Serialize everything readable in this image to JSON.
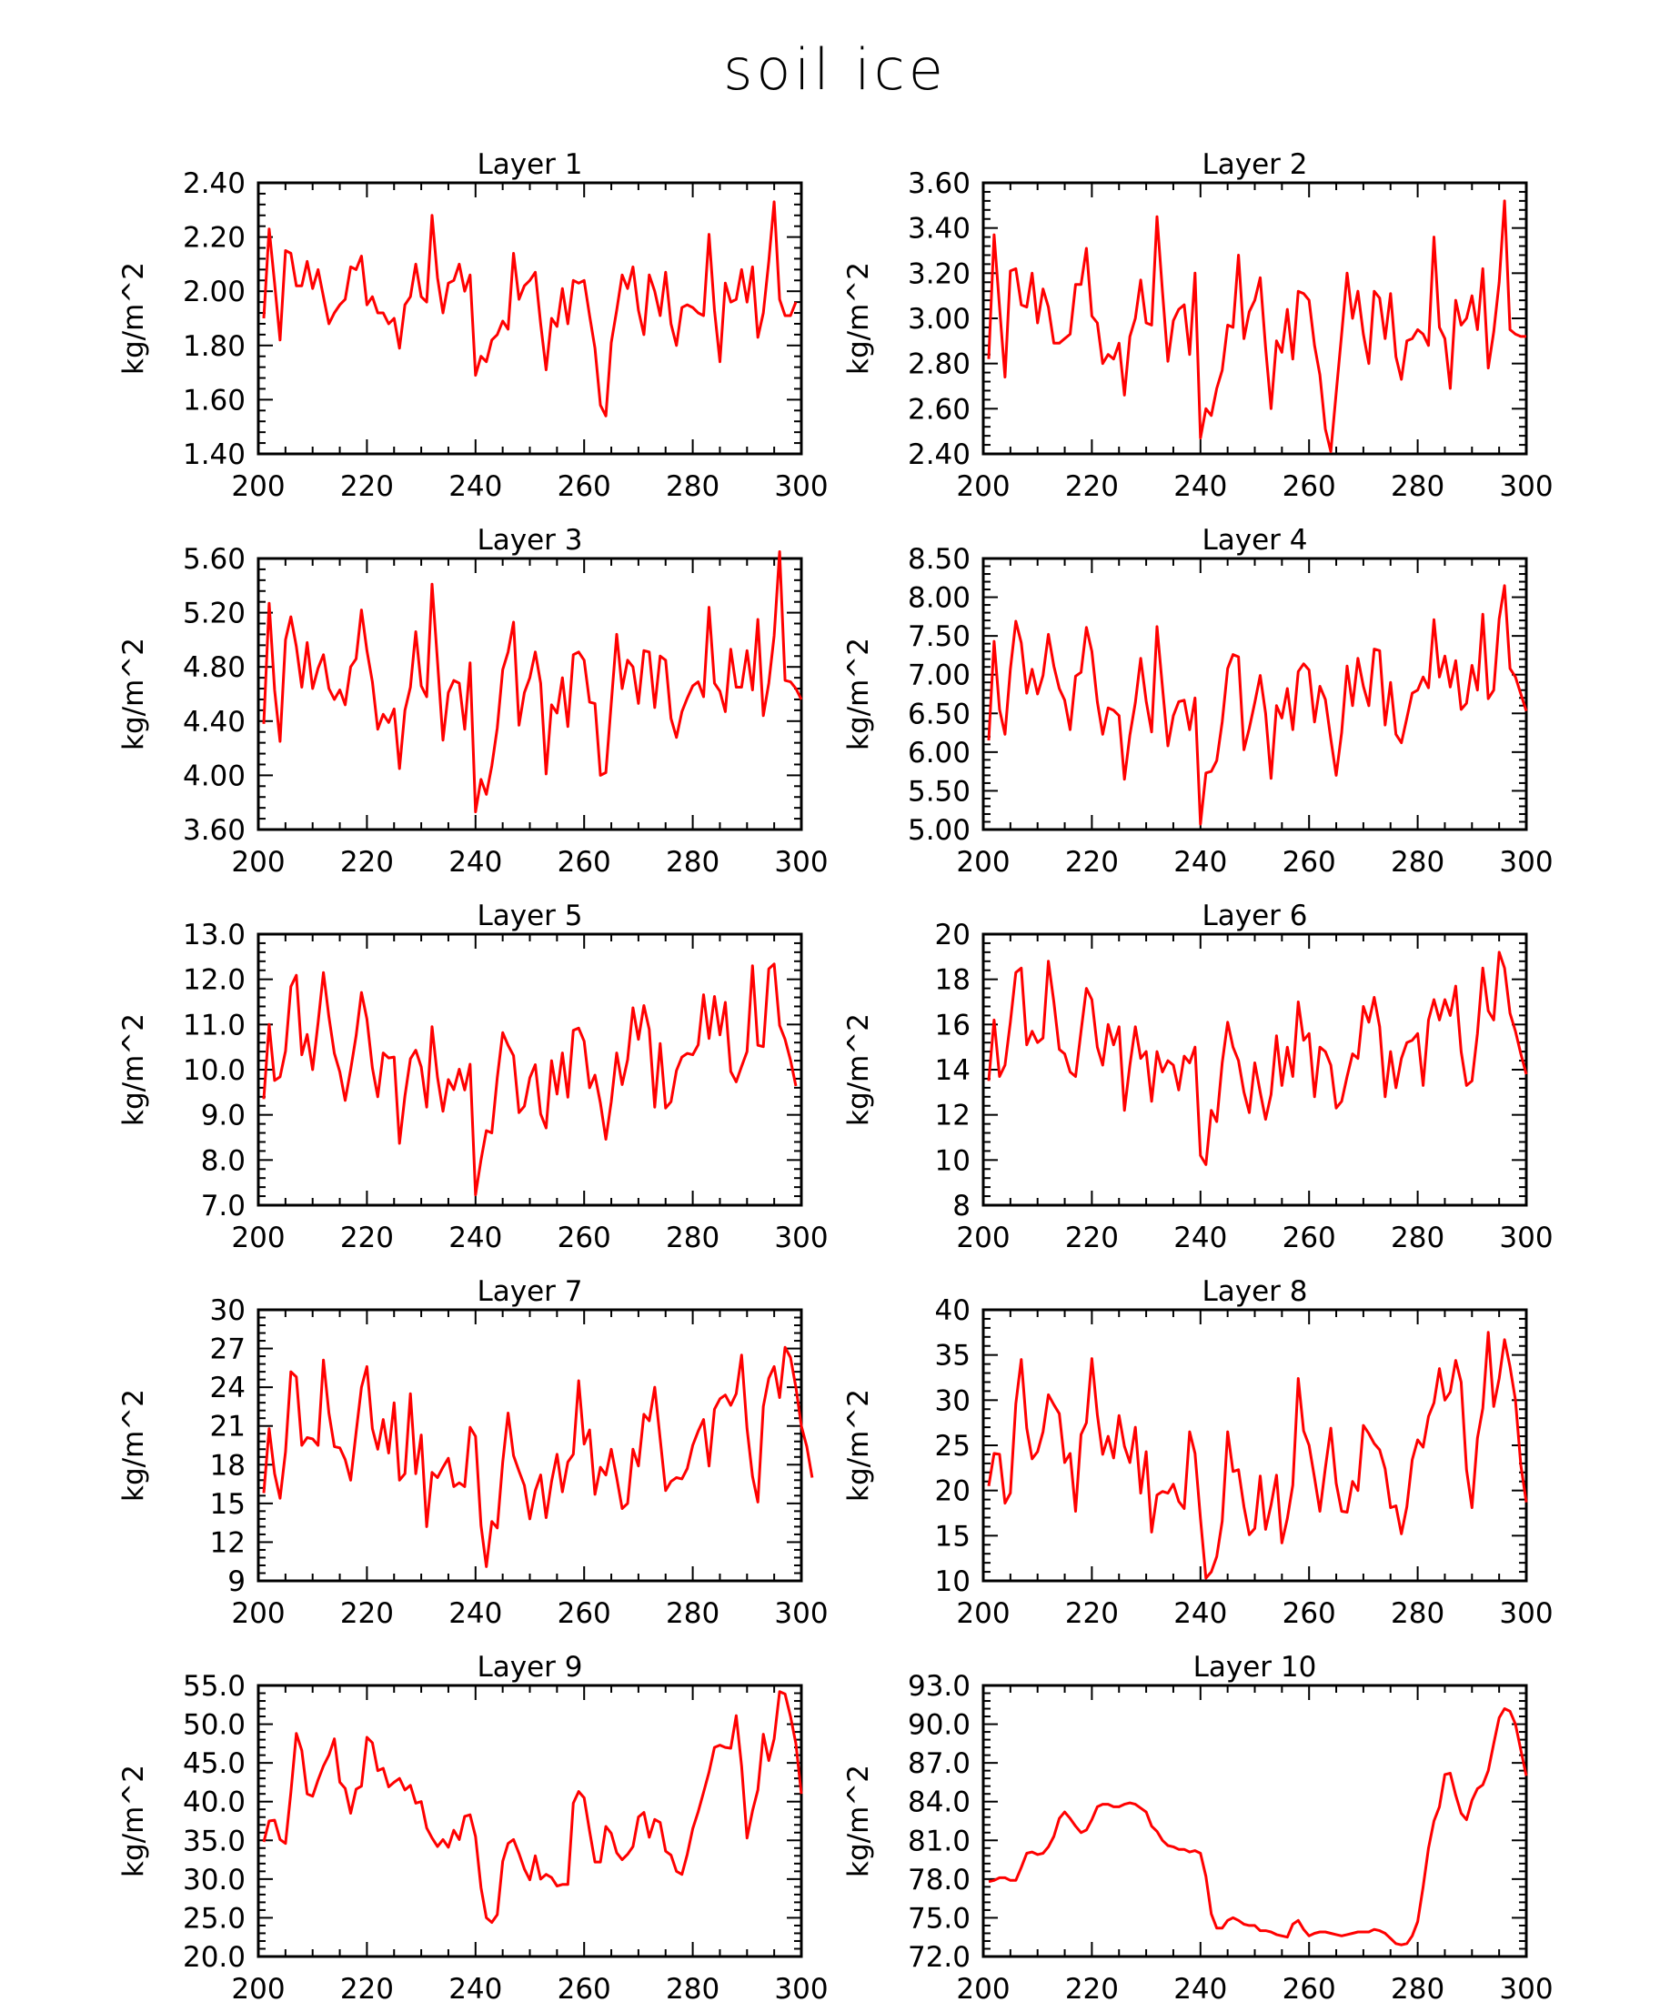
{
  "title": "soil ice",
  "chart_data": [
    {
      "type": "line",
      "title": "Layer 1",
      "ylabel": "kg/m^2",
      "xlim": [
        200,
        300
      ],
      "ylim": [
        1.4,
        2.4
      ],
      "xticks": [
        "200",
        "220",
        "240",
        "260",
        "280",
        "300"
      ],
      "yticks": [
        "1.40",
        "1.60",
        "1.80",
        "2.00",
        "2.20",
        "2.40"
      ],
      "color": "#ff0000",
      "x_start": 201,
      "x_step": 1,
      "values": [
        1.9,
        2.23,
        2.03,
        1.82,
        2.15,
        2.14,
        2.02,
        2.02,
        2.11,
        2.01,
        2.08,
        1.98,
        1.88,
        1.92,
        1.95,
        1.97,
        2.09,
        2.08,
        2.13,
        1.95,
        1.98,
        1.92,
        1.92,
        1.88,
        1.9,
        1.79,
        1.95,
        1.98,
        2.1,
        1.98,
        1.96,
        2.28,
        2.05,
        1.92,
        2.03,
        2.04,
        2.1,
        2.0,
        2.06,
        1.69,
        1.76,
        1.74,
        1.82,
        1.84,
        1.89,
        1.86,
        2.14,
        1.97,
        2.02,
        2.04,
        2.07,
        1.88,
        1.71,
        1.9,
        1.87,
        2.01,
        1.88,
        2.04,
        2.03,
        2.04,
        1.91,
        1.79,
        1.58,
        1.54,
        1.81,
        1.93,
        2.06,
        2.01,
        2.09,
        1.93,
        1.84,
        2.06,
        2.0,
        1.91,
        2.07,
        1.88,
        1.8,
        1.94,
        1.95,
        1.94,
        1.92,
        1.91,
        2.21,
        1.93,
        1.74,
        2.03,
        1.96,
        1.97,
        2.08,
        1.96,
        2.09,
        1.83,
        1.92,
        2.11,
        2.33,
        1.97,
        1.91,
        1.91,
        1.96
      ]
    },
    {
      "type": "line",
      "title": "Layer 2",
      "ylabel": "kg/m^2",
      "xlim": [
        200,
        300
      ],
      "ylim": [
        2.4,
        3.6
      ],
      "xticks": [
        "200",
        "220",
        "240",
        "260",
        "280",
        "300"
      ],
      "yticks": [
        "2.40",
        "2.60",
        "2.80",
        "3.00",
        "3.20",
        "3.40",
        "3.60"
      ],
      "color": "#ff0000",
      "x_start": 201,
      "x_step": 1,
      "values": [
        2.82,
        3.37,
        3.05,
        2.74,
        3.21,
        3.22,
        3.06,
        3.05,
        3.2,
        2.98,
        3.13,
        3.05,
        2.89,
        2.89,
        2.91,
        2.93,
        3.15,
        3.15,
        3.31,
        3.01,
        2.98,
        2.8,
        2.84,
        2.82,
        2.89,
        2.66,
        2.92,
        3.0,
        3.17,
        2.98,
        2.97,
        3.45,
        3.12,
        2.81,
        2.99,
        3.04,
        3.06,
        2.84,
        3.2,
        2.47,
        2.6,
        2.57,
        2.69,
        2.77,
        2.97,
        2.96,
        3.28,
        2.91,
        3.03,
        3.08,
        3.18,
        2.87,
        2.6,
        2.9,
        2.85,
        3.04,
        2.82,
        3.12,
        3.11,
        3.08,
        2.88,
        2.75,
        2.51,
        2.41,
        2.67,
        2.93,
        3.2,
        3.0,
        3.12,
        2.93,
        2.8,
        3.12,
        3.09,
        2.91,
        3.11,
        2.83,
        2.73,
        2.9,
        2.91,
        2.95,
        2.93,
        2.88,
        3.36,
        2.96,
        2.91,
        2.69,
        3.08,
        2.97,
        3.0,
        3.1,
        2.95,
        3.22,
        2.78,
        2.94,
        3.16,
        3.52,
        2.95,
        2.93,
        2.92,
        2.92
      ]
    },
    {
      "type": "line",
      "title": "Layer 3",
      "ylabel": "kg/m^2",
      "xlim": [
        200,
        300
      ],
      "ylim": [
        3.6,
        5.6
      ],
      "xticks": [
        "200",
        "220",
        "240",
        "260",
        "280",
        "300"
      ],
      "yticks": [
        "3.60",
        "4.00",
        "4.40",
        "4.80",
        "5.20",
        "5.60"
      ],
      "color": "#ff0000",
      "x_start": 201,
      "x_step": 1,
      "values": [
        4.38,
        5.27,
        4.63,
        4.25,
        5.0,
        5.17,
        4.95,
        4.65,
        4.98,
        4.64,
        4.79,
        4.89,
        4.64,
        4.56,
        4.63,
        4.52,
        4.8,
        4.86,
        5.22,
        4.92,
        4.69,
        4.34,
        4.45,
        4.39,
        4.49,
        4.05,
        4.48,
        4.65,
        5.06,
        4.66,
        4.58,
        5.41,
        4.84,
        4.26,
        4.61,
        4.7,
        4.68,
        4.34,
        4.83,
        3.73,
        3.97,
        3.86,
        4.07,
        4.35,
        4.78,
        4.91,
        5.13,
        4.37,
        4.61,
        4.72,
        4.91,
        4.68,
        4.01,
        4.52,
        4.46,
        4.72,
        4.36,
        4.89,
        4.91,
        4.85,
        4.54,
        4.53,
        4.0,
        4.02,
        4.53,
        5.04,
        4.64,
        4.85,
        4.8,
        4.53,
        4.92,
        4.91,
        4.5,
        4.88,
        4.85,
        4.42,
        4.28,
        4.47,
        4.57,
        4.66,
        4.69,
        4.58,
        5.24,
        4.68,
        4.62,
        4.47,
        4.93,
        4.65,
        4.65,
        4.92,
        4.63,
        5.15,
        4.44,
        4.68,
        5.03,
        5.65,
        4.7,
        4.69,
        4.64,
        4.56
      ]
    },
    {
      "type": "line",
      "title": "Layer 4",
      "ylabel": "kg/m^2",
      "xlim": [
        200,
        300
      ],
      "ylim": [
        5.0,
        8.5
      ],
      "xticks": [
        "200",
        "220",
        "240",
        "260",
        "280",
        "300"
      ],
      "yticks": [
        "5.00",
        "5.50",
        "6.00",
        "6.50",
        "7.00",
        "7.50",
        "8.00",
        "8.50"
      ],
      "color": "#ff0000",
      "x_start": 201,
      "x_step": 1,
      "values": [
        6.15,
        7.43,
        6.55,
        6.23,
        7.07,
        7.69,
        7.41,
        6.76,
        7.07,
        6.75,
        6.99,
        7.52,
        7.11,
        6.82,
        6.67,
        6.29,
        6.98,
        7.03,
        7.61,
        7.3,
        6.65,
        6.23,
        6.57,
        6.54,
        6.47,
        5.65,
        6.22,
        6.64,
        7.21,
        6.66,
        6.26,
        7.62,
        6.84,
        6.08,
        6.47,
        6.65,
        6.67,
        6.29,
        6.7,
        5.07,
        5.73,
        5.75,
        5.89,
        6.39,
        7.08,
        7.26,
        7.23,
        6.03,
        6.31,
        6.64,
        6.99,
        6.5,
        5.66,
        6.6,
        6.44,
        6.82,
        6.29,
        7.04,
        7.14,
        7.06,
        6.39,
        6.85,
        6.68,
        6.17,
        5.7,
        6.25,
        7.11,
        6.6,
        7.21,
        6.85,
        6.6,
        7.33,
        7.31,
        6.35,
        6.9,
        6.23,
        6.12,
        6.44,
        6.76,
        6.8,
        6.97,
        6.83,
        7.71,
        6.97,
        7.24,
        6.84,
        7.18,
        6.55,
        6.63,
        7.12,
        6.8,
        7.78,
        6.69,
        6.8,
        7.72,
        8.15,
        7.08,
        6.97,
        6.75,
        6.53
      ]
    },
    {
      "type": "line",
      "title": "Layer 5",
      "ylabel": "kg/m^2",
      "xlim": [
        200,
        300
      ],
      "ylim": [
        7.0,
        13.0
      ],
      "xticks": [
        "200",
        "220",
        "240",
        "260",
        "280",
        "300"
      ],
      "yticks": [
        "7.0",
        "8.0",
        "9.0",
        "10.0",
        "11.0",
        "12.0",
        "13.0"
      ],
      "color": "#ff0000",
      "x_start": 201,
      "x_step": 1,
      "values": [
        9.35,
        11.0,
        9.76,
        9.84,
        10.41,
        11.84,
        12.09,
        10.33,
        10.78,
        10.0,
        11.04,
        12.15,
        11.17,
        10.36,
        9.95,
        9.32,
        10.0,
        10.75,
        11.71,
        11.12,
        10.04,
        9.4,
        10.37,
        10.26,
        10.28,
        8.37,
        9.42,
        10.24,
        10.43,
        10.06,
        9.17,
        10.95,
        9.83,
        9.08,
        9.78,
        9.56,
        10.01,
        9.55,
        10.12,
        7.23,
        8.0,
        8.65,
        8.6,
        9.82,
        10.82,
        10.54,
        10.31,
        9.05,
        9.19,
        9.82,
        10.11,
        9.02,
        8.71,
        10.2,
        9.46,
        10.37,
        9.39,
        10.87,
        10.92,
        10.63,
        9.6,
        9.88,
        9.26,
        8.46,
        9.29,
        10.37,
        9.67,
        10.22,
        11.37,
        10.67,
        11.42,
        10.89,
        9.17,
        10.58,
        9.15,
        9.29,
        9.98,
        10.28,
        10.36,
        10.33,
        10.55,
        11.66,
        10.69,
        11.62,
        10.77,
        11.49,
        9.96,
        9.73,
        10.07,
        10.4,
        12.3,
        10.54,
        10.51,
        12.23,
        12.34,
        10.98,
        10.67,
        10.21,
        9.64
      ]
    },
    {
      "type": "line",
      "title": "Layer 6",
      "ylabel": "kg/m^2",
      "xlim": [
        200,
        300
      ],
      "ylim": [
        8,
        20
      ],
      "xticks": [
        "200",
        "220",
        "240",
        "260",
        "280",
        "300"
      ],
      "yticks": [
        "8",
        "10",
        "12",
        "14",
        "16",
        "18",
        "20"
      ],
      "color": "#ff0000",
      "x_start": 201,
      "x_step": 1,
      "values": [
        13.5,
        16.2,
        13.7,
        14.2,
        16.1,
        18.3,
        18.5,
        15.1,
        15.7,
        15.2,
        15.4,
        18.8,
        17.0,
        14.9,
        14.7,
        13.9,
        13.7,
        15.7,
        17.6,
        17.1,
        15.0,
        14.2,
        16.0,
        15.1,
        15.9,
        12.2,
        14.2,
        15.9,
        14.5,
        14.8,
        12.6,
        14.8,
        13.9,
        14.4,
        14.2,
        13.1,
        14.6,
        14.3,
        15.0,
        10.2,
        9.8,
        12.2,
        11.7,
        14.3,
        16.1,
        15.0,
        14.4,
        13.0,
        12.1,
        14.3,
        13.0,
        11.8,
        12.9,
        15.5,
        13.3,
        15.0,
        13.7,
        17.0,
        15.3,
        15.6,
        12.8,
        15.0,
        14.8,
        14.2,
        12.3,
        12.6,
        13.7,
        14.7,
        14.5,
        16.8,
        16.1,
        17.2,
        15.9,
        12.8,
        14.8,
        13.2,
        14.5,
        15.2,
        15.3,
        15.6,
        13.3,
        16.2,
        17.1,
        16.2,
        17.1,
        16.4,
        17.7,
        14.8,
        13.3,
        13.5,
        15.6,
        18.5,
        16.6,
        16.2,
        19.2,
        18.5,
        16.5,
        15.7,
        14.7,
        13.8
      ]
    },
    {
      "type": "line",
      "title": "Layer 7",
      "ylabel": "kg/m^2",
      "xlim": [
        200,
        300
      ],
      "ylim": [
        9,
        30
      ],
      "xticks": [
        "200",
        "220",
        "240",
        "260",
        "280",
        "300"
      ],
      "yticks": [
        "9",
        "12",
        "15",
        "18",
        "21",
        "24",
        "27",
        "30"
      ],
      "color": "#ff0000",
      "x_start": 201,
      "x_step": 1,
      "values": [
        15.8,
        20.8,
        17.3,
        15.4,
        19.0,
        25.2,
        24.8,
        19.5,
        20.1,
        20.0,
        19.5,
        26.1,
        22.0,
        19.4,
        19.3,
        18.4,
        16.8,
        20.5,
        24.0,
        25.6,
        20.8,
        19.2,
        21.5,
        18.9,
        22.8,
        16.8,
        17.3,
        23.5,
        17.3,
        20.3,
        13.2,
        17.4,
        17.0,
        17.8,
        18.5,
        16.3,
        16.6,
        16.3,
        20.9,
        20.2,
        13.3,
        10.1,
        13.6,
        13.1,
        18.2,
        22.0,
        18.7,
        17.5,
        16.4,
        13.8,
        16.0,
        17.2,
        13.9,
        16.7,
        18.8,
        15.9,
        18.2,
        18.8,
        24.5,
        19.6,
        20.7,
        15.7,
        17.8,
        17.2,
        19.2,
        17.0,
        14.6,
        15.0,
        19.2,
        17.9,
        21.9,
        21.4,
        24.0,
        20.0,
        16.0,
        16.7,
        17.0,
        16.9,
        17.7,
        19.5,
        20.6,
        21.5,
        17.9,
        22.3,
        23.1,
        23.4,
        22.6,
        23.5,
        26.5,
        20.8,
        17.1,
        15.1,
        22.5,
        24.7,
        25.6,
        23.2,
        27.1,
        26.3,
        24.0,
        21.0,
        19.4,
        17.0
      ]
    },
    {
      "type": "line",
      "title": "Layer 8",
      "ylabel": "kg/m^2",
      "xlim": [
        200,
        300
      ],
      "ylim": [
        10,
        40
      ],
      "xticks": [
        "200",
        "220",
        "240",
        "260",
        "280",
        "300"
      ],
      "yticks": [
        "10",
        "15",
        "20",
        "25",
        "30",
        "35",
        "40"
      ],
      "color": "#ff0000",
      "x_start": 201,
      "x_step": 1,
      "values": [
        20.5,
        24.1,
        24.0,
        18.6,
        19.7,
        29.6,
        34.5,
        26.9,
        23.5,
        24.3,
        26.5,
        30.6,
        29.5,
        28.5,
        23.1,
        24.1,
        17.7,
        26.2,
        27.5,
        34.6,
        28.4,
        24.0,
        26.0,
        23.6,
        28.3,
        24.9,
        23.1,
        27.0,
        19.7,
        24.3,
        15.4,
        19.5,
        19.9,
        19.7,
        20.7,
        18.8,
        18.0,
        26.5,
        24.1,
        16.9,
        10.3,
        11.0,
        12.7,
        16.6,
        26.5,
        22.1,
        22.3,
        18.2,
        15.1,
        15.8,
        21.6,
        15.7,
        18.4,
        21.7,
        14.2,
        16.9,
        20.6,
        32.4,
        26.6,
        25.0,
        21.4,
        17.7,
        22.5,
        26.9,
        20.8,
        17.7,
        17.6,
        21.0,
        20.0,
        27.2,
        26.3,
        25.2,
        24.5,
        22.4,
        18.1,
        18.3,
        15.2,
        18.2,
        23.4,
        25.6,
        24.8,
        28.2,
        29.7,
        33.5,
        30.0,
        30.9,
        34.4,
        32.0,
        22.3,
        18.1,
        25.8,
        29.1,
        37.5,
        29.3,
        32.4,
        36.7,
        33.7,
        30.0,
        22.8,
        18.7
      ]
    },
    {
      "type": "line",
      "title": "Layer 9",
      "ylabel": "kg/m^2",
      "xlim": [
        200,
        300
      ],
      "ylim": [
        20,
        55
      ],
      "xticks": [
        "200",
        "220",
        "240",
        "260",
        "280",
        "300"
      ],
      "yticks": [
        "20.0",
        "25.0",
        "30.0",
        "35.0",
        "40.0",
        "45.0",
        "50.0",
        "55.0"
      ],
      "color": "#ff0000",
      "x_start": 201,
      "x_step": 1,
      "values": [
        34.8,
        37.5,
        37.6,
        35.1,
        34.6,
        41.2,
        48.8,
        46.6,
        41.0,
        40.7,
        42.8,
        44.6,
        46.0,
        48.1,
        42.5,
        41.7,
        38.5,
        41.6,
        42.0,
        48.3,
        47.6,
        44.0,
        44.3,
        41.9,
        42.5,
        43.0,
        41.5,
        42.1,
        39.8,
        40.0,
        36.6,
        35.3,
        34.2,
        35.1,
        34.1,
        36.3,
        35.1,
        38.1,
        38.3,
        35.5,
        28.9,
        25.0,
        24.4,
        25.4,
        32.3,
        34.6,
        35.1,
        33.3,
        31.3,
        29.9,
        33.0,
        30.0,
        30.6,
        30.2,
        29.1,
        29.3,
        29.3,
        39.8,
        41.3,
        40.5,
        36.2,
        32.2,
        32.2,
        36.8,
        35.9,
        33.4,
        32.5,
        33.2,
        34.2,
        38.0,
        38.6,
        35.4,
        37.7,
        37.3,
        33.6,
        33.1,
        31.0,
        30.6,
        33.2,
        36.5,
        38.7,
        41.2,
        43.8,
        47.0,
        47.3,
        47.0,
        46.9,
        51.1,
        44.6,
        35.3,
        38.8,
        41.5,
        48.7,
        45.3,
        48.1,
        54.2,
        53.9,
        51.0,
        47.5,
        41.0
      ]
    },
    {
      "type": "line",
      "title": "Layer 10",
      "ylabel": "kg/m^2",
      "xlim": [
        200,
        300
      ],
      "ylim": [
        72,
        93
      ],
      "xticks": [
        "200",
        "220",
        "240",
        "260",
        "280",
        "300"
      ],
      "yticks": [
        "72.0",
        "75.0",
        "78.0",
        "81.0",
        "84.0",
        "87.0",
        "90.0",
        "93.0"
      ],
      "color": "#ff0000",
      "x_start": 201,
      "x_step": 1,
      "values": [
        77.8,
        77.9,
        78.1,
        78.1,
        77.9,
        77.9,
        78.9,
        80.0,
        80.1,
        79.9,
        80.0,
        80.5,
        81.3,
        82.7,
        83.2,
        82.7,
        82.1,
        81.6,
        81.8,
        82.6,
        83.6,
        83.8,
        83.8,
        83.6,
        83.6,
        83.8,
        83.9,
        83.8,
        83.5,
        83.2,
        82.1,
        81.7,
        81.0,
        80.6,
        80.5,
        80.3,
        80.3,
        80.1,
        80.2,
        80.0,
        78.2,
        75.3,
        74.2,
        74.2,
        74.8,
        75.0,
        74.8,
        74.5,
        74.4,
        74.4,
        74.0,
        74.0,
        73.9,
        73.7,
        73.6,
        73.5,
        74.5,
        74.8,
        74.1,
        73.6,
        73.8,
        73.9,
        73.9,
        73.8,
        73.7,
        73.6,
        73.7,
        73.8,
        73.9,
        73.9,
        73.9,
        74.1,
        74.0,
        73.8,
        73.4,
        73.0,
        72.9,
        73.0,
        73.6,
        74.7,
        77.4,
        80.4,
        82.5,
        83.6,
        86.1,
        86.2,
        84.5,
        83.1,
        82.6,
        84.1,
        85.0,
        85.3,
        86.4,
        88.5,
        90.5,
        91.2,
        91.0,
        90.0,
        88.0,
        86.0
      ]
    }
  ]
}
